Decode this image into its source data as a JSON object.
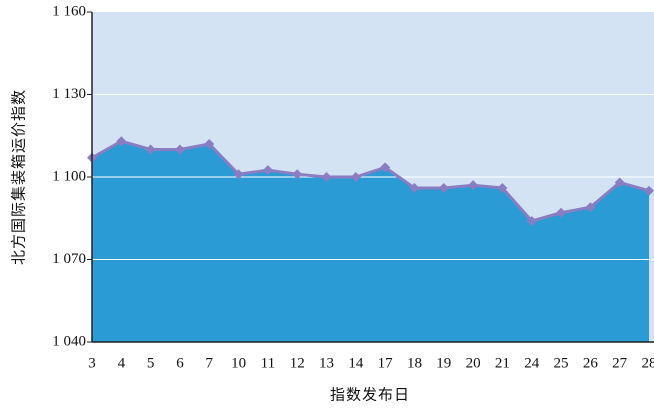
{
  "chart_data": {
    "type": "area",
    "x_label": "指数发布日",
    "y_label": "北方国际集装箱运价指数",
    "categories": [
      "3",
      "4",
      "5",
      "6",
      "7",
      "10",
      "11",
      "12",
      "13",
      "14",
      "17",
      "18",
      "19",
      "20",
      "21",
      "24",
      "25",
      "26",
      "27",
      "28"
    ],
    "series": [
      {
        "values": [
          1107,
          1113,
          1110,
          1110,
          1112,
          1101,
          1102.5,
          1101,
          1100,
          1100,
          1103.5,
          1096,
          1096,
          1097,
          1096,
          1084,
          1087,
          1089,
          1098,
          1095
        ]
      }
    ],
    "area_color": "#2b9bd5",
    "line_color": "#8a7dc2",
    "plot_background": "#d3e3f4",
    "ylim": [
      1040,
      1160
    ],
    "yticks": [
      {
        "value": 1040,
        "label": "1 040"
      },
      {
        "value": 1070,
        "label": "1 070"
      },
      {
        "value": 1100,
        "label": "1 100"
      },
      {
        "value": 1130,
        "label": "1 130"
      },
      {
        "value": 1160,
        "label": "1 160"
      }
    ],
    "grid": true
  }
}
